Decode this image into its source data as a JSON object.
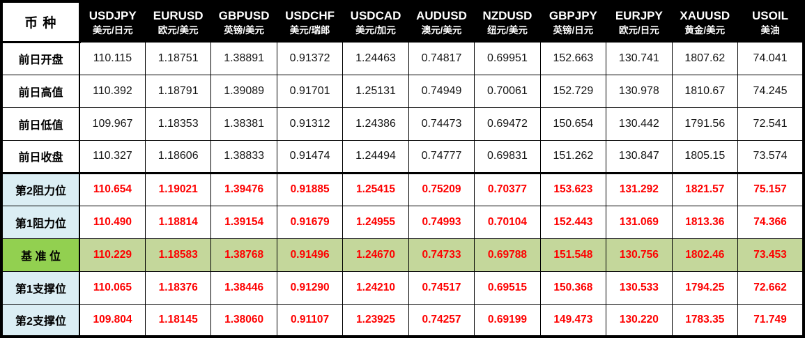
{
  "colors": {
    "header_bg": "#000000",
    "header_text": "#ffffff",
    "label_blue": "#dbeef4",
    "pivot_label_green": "#92d050",
    "pivot_row_olive": "#c4d79b",
    "value_red": "#fe0000",
    "border": "#000000"
  },
  "chart_data": {
    "type": "table",
    "corner_label": "币 种",
    "columns": [
      {
        "symbol": "USDJPY",
        "subtitle": "美元/日元"
      },
      {
        "symbol": "EURUSD",
        "subtitle": "欧元/美元"
      },
      {
        "symbol": "GBPUSD",
        "subtitle": "英镑/美元"
      },
      {
        "symbol": "USDCHF",
        "subtitle": "美元/瑞郎"
      },
      {
        "symbol": "USDCAD",
        "subtitle": "美元/加元"
      },
      {
        "symbol": "AUDUSD",
        "subtitle": "澳元/美元"
      },
      {
        "symbol": "NZDUSD",
        "subtitle": "纽元/美元"
      },
      {
        "symbol": "GBPJPY",
        "subtitle": "英镑/日元"
      },
      {
        "symbol": "EURJPY",
        "subtitle": "欧元/日元"
      },
      {
        "symbol": "XAUUSD",
        "subtitle": "黄金/美元"
      },
      {
        "symbol": "USOIL",
        "subtitle": "美油"
      }
    ],
    "rows": [
      {
        "label": "前日开盘",
        "kind": "prev",
        "values": [
          "110.115",
          "1.18751",
          "1.38891",
          "0.91372",
          "1.24463",
          "0.74817",
          "0.69951",
          "152.663",
          "130.741",
          "1807.62",
          "74.041"
        ]
      },
      {
        "label": "前日高值",
        "kind": "prev",
        "values": [
          "110.392",
          "1.18791",
          "1.39089",
          "0.91701",
          "1.25131",
          "0.74949",
          "0.70061",
          "152.729",
          "130.978",
          "1810.67",
          "74.245"
        ]
      },
      {
        "label": "前日低值",
        "kind": "prev",
        "values": [
          "109.967",
          "1.18353",
          "1.38381",
          "0.91312",
          "1.24386",
          "0.74473",
          "0.69472",
          "150.654",
          "130.442",
          "1791.56",
          "72.541"
        ]
      },
      {
        "label": "前日收盘",
        "kind": "prev",
        "values": [
          "110.327",
          "1.18606",
          "1.38833",
          "0.91474",
          "1.24494",
          "0.74777",
          "0.69831",
          "151.262",
          "130.847",
          "1805.15",
          "73.574"
        ]
      },
      {
        "label": "第2阻力位",
        "kind": "resistance",
        "values": [
          "110.654",
          "1.19021",
          "1.39476",
          "0.91885",
          "1.25415",
          "0.75209",
          "0.70377",
          "153.623",
          "131.292",
          "1821.57",
          "75.157"
        ]
      },
      {
        "label": "第1阻力位",
        "kind": "resistance",
        "values": [
          "110.490",
          "1.18814",
          "1.39154",
          "0.91679",
          "1.24955",
          "0.74993",
          "0.70104",
          "152.443",
          "131.069",
          "1813.36",
          "74.366"
        ]
      },
      {
        "label": "基 准 位",
        "kind": "pivot",
        "values": [
          "110.229",
          "1.18583",
          "1.38768",
          "0.91496",
          "1.24670",
          "0.74733",
          "0.69788",
          "151.548",
          "130.756",
          "1802.46",
          "73.453"
        ]
      },
      {
        "label": "第1支撑位",
        "kind": "support",
        "values": [
          "110.065",
          "1.18376",
          "1.38446",
          "0.91290",
          "1.24210",
          "0.74517",
          "0.69515",
          "150.368",
          "130.533",
          "1794.25",
          "72.662"
        ]
      },
      {
        "label": "第2支撑位",
        "kind": "support",
        "values": [
          "109.804",
          "1.18145",
          "1.38060",
          "0.91107",
          "1.23925",
          "0.74257",
          "0.69199",
          "149.473",
          "130.220",
          "1783.35",
          "71.749"
        ]
      }
    ]
  }
}
